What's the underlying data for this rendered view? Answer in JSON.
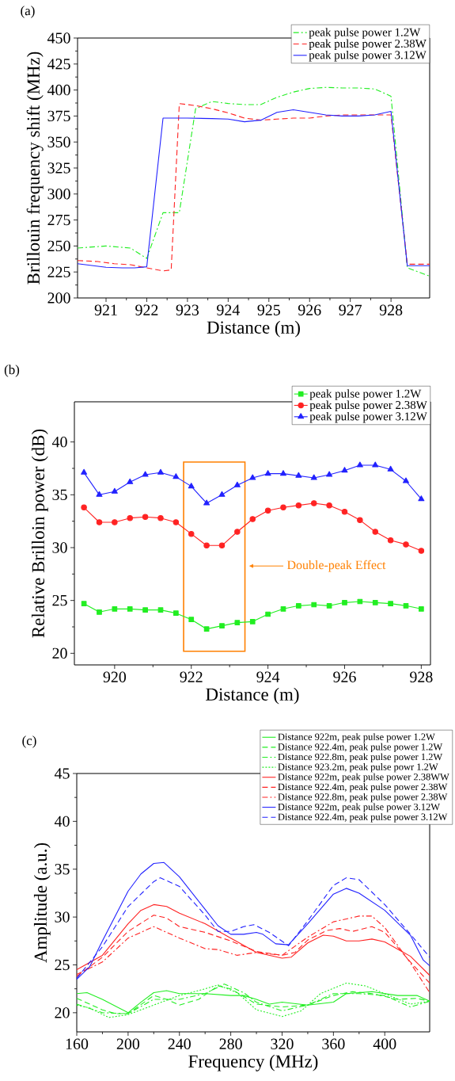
{
  "chart_data": [
    {
      "type": "line",
      "xlabel": "Distance (m)",
      "ylabel": "Brillouin frequency shift (MHz)",
      "annotations": [
        "(a)"
      ],
      "xlim": [
        920.3,
        928.95
      ],
      "xticks": [
        921,
        922,
        923,
        924,
        925,
        926,
        927,
        928
      ],
      "ylim": [
        200,
        450
      ],
      "yticks": [
        200,
        225,
        250,
        275,
        300,
        325,
        350,
        375,
        400,
        425,
        450
      ],
      "legend": "top right",
      "grid": false,
      "series": [
        {
          "name": "peak pulse power 1.2W",
          "color": "#22ee22",
          "line_style": "dashdot",
          "x": [
            920.3,
            921,
            921.6,
            922,
            922.4,
            922.8,
            923.2,
            923.6,
            924,
            924.4,
            924.8,
            925.2,
            925.6,
            926,
            926.4,
            926.8,
            927.2,
            927.6,
            928,
            928.4,
            928.95
          ],
          "values": [
            248,
            250,
            248,
            238,
            282,
            282,
            382,
            389,
            387,
            386,
            386,
            393,
            398,
            401.5,
            402.5,
            402,
            402,
            401,
            394,
            229,
            221
          ]
        },
        {
          "name": "peak pulse power 2.38W",
          "color": "#ff2222",
          "line_style": "dashed",
          "x": [
            920.3,
            920.8,
            921.2,
            921.6,
            922,
            922.4,
            922.6,
            922.8,
            923.2,
            923.6,
            924,
            924.4,
            924.8,
            925.2,
            925.6,
            926,
            926.4,
            926.8,
            927.2,
            927.6,
            928,
            928.4,
            928.95
          ],
          "values": [
            236,
            235,
            233,
            232,
            229,
            226,
            227,
            387,
            385,
            382,
            378,
            373,
            371,
            372,
            373,
            373,
            375,
            376,
            376,
            376,
            376,
            232.5,
            232.5
          ]
        },
        {
          "name": "peak pulse power 3.12W",
          "color": "#2222ff",
          "line_style": "solid",
          "x": [
            920.3,
            921,
            921.4,
            921.7,
            922,
            922.4,
            923,
            923.6,
            924,
            924.4,
            924.8,
            925.2,
            925.6,
            926,
            926.4,
            926.8,
            927.2,
            927.6,
            928,
            928.4,
            928.95
          ],
          "values": [
            233,
            229.5,
            229,
            229,
            230,
            373,
            373,
            372.5,
            372,
            369.5,
            371,
            378.5,
            381,
            378.5,
            376,
            375,
            375,
            376,
            379.5,
            231,
            231
          ]
        }
      ]
    },
    {
      "type": "line",
      "xlabel": "Distance (m)",
      "ylabel": "Relative Brilloin power (dB)",
      "annotations": [
        "(b)",
        "Double-peak Effect"
      ],
      "xlim": [
        918.95,
        928.24
      ],
      "xticks": [
        920,
        922,
        924,
        926,
        928
      ],
      "ylim": [
        18.9,
        43.8
      ],
      "yticks": [
        20,
        25,
        30,
        35,
        40
      ],
      "legend": "top right",
      "grid": false,
      "bands": [
        {
          "axis": "x",
          "from": 921.8,
          "to": 923.4,
          "color": "#ff8000"
        }
      ],
      "series": [
        {
          "name": "peak pulse power 1.2W",
          "color": "#22ee22",
          "marker": "square",
          "line_style": "solid",
          "x": [
            919.2,
            919.6,
            920,
            920.4,
            920.8,
            921.2,
            921.6,
            922,
            922.4,
            922.8,
            923.2,
            923.6,
            924,
            924.4,
            924.8,
            925.2,
            925.6,
            926,
            926.4,
            926.8,
            927.2,
            927.6,
            928
          ],
          "values": [
            24.7,
            23.9,
            24.2,
            24.2,
            24.1,
            24.1,
            23.8,
            23.2,
            22.3,
            22.6,
            22.9,
            23.0,
            23.7,
            24.2,
            24.5,
            24.6,
            24.5,
            24.8,
            24.9,
            24.8,
            24.7,
            24.5,
            24.2
          ]
        },
        {
          "name": "peak pulse power 2.38W",
          "color": "#ff2222",
          "marker": "circle",
          "line_style": "solid",
          "x": [
            919.2,
            919.6,
            920,
            920.4,
            920.8,
            921.2,
            921.6,
            922,
            922.4,
            922.8,
            923.2,
            923.6,
            924,
            924.4,
            924.8,
            925.2,
            925.6,
            926,
            926.4,
            926.8,
            927.2,
            927.6,
            928
          ],
          "values": [
            33.8,
            32.4,
            32.4,
            32.8,
            32.9,
            32.8,
            32.4,
            31.3,
            30.2,
            30.2,
            31.5,
            32.7,
            33.5,
            33.8,
            34.0,
            34.2,
            34.0,
            33.4,
            32.6,
            31.5,
            30.7,
            30.3,
            29.7
          ]
        },
        {
          "name": "peak pulse power 3.12W",
          "color": "#2222ff",
          "marker": "triangle",
          "line_style": "solid",
          "x": [
            919.2,
            919.6,
            920,
            920.4,
            920.8,
            921.2,
            921.6,
            922,
            922.4,
            922.8,
            923.2,
            923.6,
            924,
            924.4,
            924.8,
            925.2,
            925.6,
            926,
            926.4,
            926.8,
            927.2,
            927.6,
            928
          ],
          "values": [
            37.1,
            35.0,
            35.3,
            36.2,
            36.9,
            37.1,
            36.7,
            35.8,
            34.2,
            35.0,
            35.9,
            36.6,
            37.0,
            37.0,
            36.8,
            36.6,
            36.9,
            37.3,
            37.8,
            37.8,
            37.4,
            36.3,
            34.6
          ]
        }
      ]
    },
    {
      "type": "line",
      "xlabel": "Frequency (MHz)",
      "ylabel": "Amplitude (a.u.)",
      "annotations": [
        "(c)"
      ],
      "xlim": [
        160,
        435
      ],
      "xticks": [
        160,
        200,
        240,
        280,
        320,
        360,
        400
      ],
      "ylim": [
        18,
        45
      ],
      "yticks": [
        20,
        25,
        30,
        35,
        40,
        45
      ],
      "legend": "top right",
      "grid": false,
      "series": [
        {
          "name": "Distance 922m, peak pulse power 1.2W",
          "color": "#22ee22",
          "line_style": "solid",
          "x": [
            160,
            168,
            180,
            200,
            210,
            220,
            230,
            240,
            260,
            280,
            290,
            300,
            310,
            320,
            340,
            360,
            370,
            390,
            410,
            425,
            435
          ],
          "values": [
            22.0,
            22.1,
            21.4,
            20.0,
            21.1,
            22.1,
            22.3,
            22.0,
            22.0,
            21.8,
            21.8,
            21.4,
            20.9,
            21.1,
            20.8,
            21.1,
            22.0,
            22.2,
            21.8,
            21.8,
            21.2
          ]
        },
        {
          "name": "Distance 922.4m, peak pulse power 1.2W",
          "color": "#22ee22",
          "line_style": "dashed",
          "x": [
            160,
            180,
            190,
            200,
            220,
            230,
            240,
            255,
            270,
            280,
            300,
            320,
            340,
            360,
            375,
            390,
            410,
            425,
            435
          ],
          "values": [
            21.5,
            20.3,
            19.9,
            19.9,
            21.8,
            21.4,
            20.8,
            21.4,
            22.8,
            22.5,
            20.9,
            20.6,
            20.8,
            21.8,
            22.2,
            22.0,
            21.4,
            21.5,
            21.2
          ]
        },
        {
          "name": "Distance 922.8m, peak pulse power 1.2W",
          "color": "#22ee22",
          "line_style": "dashdot",
          "x": [
            160,
            180,
            200,
            220,
            240,
            260,
            275,
            290,
            300,
            320,
            340,
            360,
            380,
            400,
            420,
            435
          ],
          "values": [
            20.9,
            20.0,
            19.9,
            21.4,
            21.4,
            22.0,
            23.0,
            22.1,
            21.1,
            20.2,
            20.8,
            22.0,
            22.0,
            21.8,
            20.6,
            21.2
          ]
        },
        {
          "name": "Distance 923.2m, peak pulse powr 1.2W",
          "color": "#22ee22",
          "line_style": "dotted",
          "x": [
            160,
            170,
            185,
            200,
            220,
            240,
            260,
            270,
            285,
            300,
            320,
            335,
            350,
            370,
            385,
            400,
            420,
            435
          ],
          "values": [
            20.8,
            20.5,
            19.5,
            19.8,
            20.8,
            21.8,
            22.5,
            22.9,
            22.1,
            20.3,
            19.6,
            20.2,
            22.0,
            23.1,
            22.8,
            22.0,
            20.9,
            21.2
          ]
        },
        {
          "name": "Distance 922m, peak pulse power 2.38WW",
          "color": "#ff2222",
          "line_style": "solid",
          "x": [
            160,
            180,
            200,
            210,
            220,
            230,
            240,
            260,
            280,
            300,
            320,
            327,
            340,
            352,
            360,
            370,
            380,
            390,
            400,
            420,
            435
          ],
          "values": [
            24.5,
            26.0,
            29.3,
            30.7,
            31.3,
            31.1,
            30.4,
            29.3,
            27.8,
            26.3,
            25.7,
            25.8,
            27.3,
            28.1,
            28.0,
            27.5,
            27.5,
            27.7,
            27.4,
            25.9,
            23.9
          ]
        },
        {
          "name": "Distance 922.4m, peak pulse power 2.38W",
          "color": "#ff2222",
          "line_style": "dashed",
          "x": [
            160,
            180,
            200,
            220,
            230,
            240,
            260,
            280,
            300,
            320,
            330,
            340,
            355,
            365,
            375,
            390,
            400,
            420,
            435
          ],
          "values": [
            23.8,
            25.8,
            28.5,
            30.2,
            29.9,
            29.0,
            28.4,
            27.5,
            26.4,
            26.0,
            26.3,
            27.6,
            28.6,
            28.8,
            28.5,
            29.0,
            28.4,
            25.3,
            23.1
          ]
        },
        {
          "name": "Distance 922.8m, peak pulse power 2.38W",
          "color": "#ff2222",
          "line_style": "dashdot",
          "x": [
            160,
            180,
            200,
            220,
            240,
            260,
            270,
            285,
            300,
            320,
            340,
            360,
            380,
            390,
            400,
            420,
            435
          ],
          "values": [
            24.0,
            25.3,
            27.8,
            29.0,
            27.8,
            26.7,
            26.6,
            26.0,
            26.3,
            26.0,
            27.9,
            29.5,
            30.1,
            30.1,
            28.9,
            25.2,
            22.1
          ]
        },
        {
          "name": "Distance 922m, peak pulse power 3.12W",
          "color": "#2222ff",
          "line_style": "solid",
          "x": [
            160,
            170,
            180,
            200,
            210,
            220,
            228,
            240,
            260,
            270,
            280,
            290,
            300,
            305,
            315,
            325,
            340,
            360,
            370,
            380,
            400,
            420,
            430,
            435
          ],
          "values": [
            23.5,
            24.8,
            27.5,
            32.7,
            34.5,
            35.6,
            35.7,
            34.2,
            30.8,
            29.1,
            28.2,
            28.2,
            28.4,
            28.2,
            27.2,
            27.1,
            29.3,
            32.4,
            33.0,
            32.5,
            30.7,
            28.1,
            25.5,
            24.9
          ]
        },
        {
          "name": "Distance 922.4m, peak pulse power 3.12W",
          "color": "#2222ff",
          "line_style": "dashed",
          "x": [
            160,
            180,
            200,
            220,
            225,
            240,
            260,
            270,
            280,
            290,
            298,
            310,
            325,
            340,
            360,
            370,
            380,
            400,
            420,
            435
          ],
          "values": [
            23.6,
            26.9,
            31.1,
            33.7,
            34.1,
            33.2,
            30.2,
            28.5,
            28.5,
            29.0,
            29.2,
            28.4,
            27.0,
            29.6,
            33.3,
            34.1,
            33.9,
            31.3,
            28.2,
            25.8
          ]
        }
      ]
    }
  ]
}
